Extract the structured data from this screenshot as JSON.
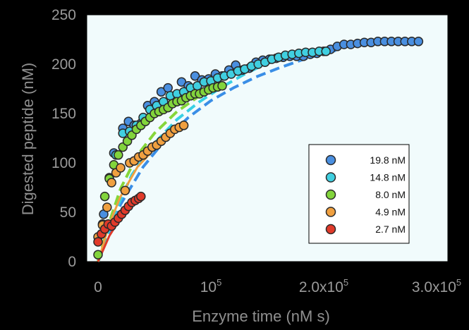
{
  "chart_data": {
    "type": "scatter",
    "xlabel": "Enzyme time (nM s)",
    "ylabel": "Digested peptide (nM)",
    "xlim": [
      -10000,
      310000
    ],
    "ylim": [
      0,
      250
    ],
    "x_ticks": [
      {
        "value": 0,
        "label": "0"
      },
      {
        "value": 100000,
        "label": "10",
        "sup": "5"
      },
      {
        "value": 200000,
        "label": "2.0x10",
        "sup": "5"
      },
      {
        "value": 300000,
        "label": "3.0x10",
        "sup": "5"
      }
    ],
    "y_ticks": [
      {
        "value": 0,
        "label": "0"
      },
      {
        "value": 50,
        "label": "50"
      },
      {
        "value": 100,
        "label": "100"
      },
      {
        "value": 150,
        "label": "150"
      },
      {
        "value": 200,
        "label": "200"
      },
      {
        "value": 250,
        "label": "250"
      }
    ],
    "legend_position": "bottom-right",
    "plot_background": "#f1fbfc",
    "series": [
      {
        "name": "19.8 nM",
        "color": "#4a8fe0",
        "points": [
          [
            5000,
            48
          ],
          [
            14000,
            110
          ],
          [
            22000,
            135
          ],
          [
            27000,
            142
          ],
          [
            32000,
            138
          ],
          [
            38000,
            140
          ],
          [
            44000,
            158
          ],
          [
            50000,
            162
          ],
          [
            56000,
            172
          ],
          [
            62000,
            176
          ],
          [
            68000,
            168
          ],
          [
            74000,
            182
          ],
          [
            80000,
            178
          ],
          [
            86000,
            188
          ],
          [
            92000,
            184
          ],
          [
            98000,
            185
          ],
          [
            104000,
            190
          ],
          [
            110000,
            188
          ],
          [
            116000,
            194
          ],
          [
            122000,
            199
          ],
          [
            128000,
            194
          ],
          [
            134000,
            196
          ],
          [
            140000,
            202
          ],
          [
            146000,
            204
          ],
          [
            152000,
            205
          ],
          [
            158000,
            206
          ],
          [
            164000,
            207
          ],
          [
            170000,
            208
          ],
          [
            176000,
            208
          ],
          [
            182000,
            208
          ],
          [
            188000,
            210
          ],
          [
            194000,
            211
          ],
          [
            200000,
            213
          ],
          [
            206000,
            215
          ],
          [
            212000,
            218
          ],
          [
            218000,
            220
          ],
          [
            224000,
            220
          ],
          [
            230000,
            221
          ],
          [
            236000,
            222
          ],
          [
            242000,
            222
          ],
          [
            248000,
            223
          ],
          [
            254000,
            223
          ],
          [
            260000,
            223
          ],
          [
            266000,
            223
          ],
          [
            272000,
            223
          ],
          [
            278000,
            223
          ],
          [
            284000,
            223
          ]
        ]
      },
      {
        "name": "14.8 nM",
        "color": "#40cfe0",
        "points": [
          [
            4000,
            38
          ],
          [
            10000,
            85
          ],
          [
            16000,
            108
          ],
          [
            22000,
            130
          ],
          [
            28000,
            132
          ],
          [
            34000,
            138
          ],
          [
            40000,
            146
          ],
          [
            46000,
            154
          ],
          [
            52000,
            158
          ],
          [
            58000,
            162
          ],
          [
            64000,
            168
          ],
          [
            70000,
            170
          ],
          [
            76000,
            172
          ],
          [
            82000,
            176
          ],
          [
            88000,
            178
          ],
          [
            94000,
            182
          ],
          [
            100000,
            183
          ],
          [
            106000,
            186
          ],
          [
            112000,
            188
          ],
          [
            118000,
            190
          ],
          [
            124000,
            193
          ],
          [
            130000,
            195
          ],
          [
            136000,
            198
          ],
          [
            142000,
            200
          ],
          [
            148000,
            202
          ],
          [
            154000,
            205
          ],
          [
            160000,
            207
          ],
          [
            166000,
            209
          ],
          [
            172000,
            210
          ],
          [
            178000,
            211
          ],
          [
            184000,
            212
          ],
          [
            190000,
            212
          ],
          [
            196000,
            213
          ],
          [
            202000,
            213
          ]
        ]
      },
      {
        "name": "8.0 nM",
        "color": "#82d43c",
        "points": [
          [
            0,
            7
          ],
          [
            6000,
            66
          ],
          [
            10000,
            84
          ],
          [
            14000,
            98
          ],
          [
            18000,
            108
          ],
          [
            22000,
            116
          ],
          [
            26000,
            122
          ],
          [
            30000,
            128
          ],
          [
            34000,
            134
          ],
          [
            38000,
            138
          ],
          [
            42000,
            142
          ],
          [
            46000,
            146
          ],
          [
            50000,
            150
          ],
          [
            54000,
            152
          ],
          [
            58000,
            154
          ],
          [
            62000,
            156
          ],
          [
            66000,
            160
          ],
          [
            70000,
            162
          ],
          [
            74000,
            163
          ],
          [
            78000,
            166
          ],
          [
            82000,
            168
          ],
          [
            86000,
            170
          ],
          [
            90000,
            170
          ],
          [
            94000,
            172
          ],
          [
            98000,
            174
          ],
          [
            102000,
            176
          ],
          [
            106000,
            177
          ],
          [
            110000,
            178
          ]
        ]
      },
      {
        "name": "4.9 nM",
        "color": "#f0a040",
        "points": [
          [
            0,
            25
          ],
          [
            4000,
            37
          ],
          [
            8000,
            55
          ],
          [
            12000,
            80
          ],
          [
            16000,
            90
          ],
          [
            20000,
            95
          ],
          [
            24000,
            72
          ],
          [
            28000,
            100
          ],
          [
            32000,
            102
          ],
          [
            36000,
            106
          ],
          [
            40000,
            108
          ],
          [
            44000,
            112
          ],
          [
            48000,
            116
          ],
          [
            52000,
            118
          ],
          [
            56000,
            122
          ],
          [
            60000,
            126
          ],
          [
            64000,
            130
          ],
          [
            68000,
            134
          ],
          [
            72000,
            136
          ],
          [
            76000,
            138
          ]
        ]
      },
      {
        "name": "2.7 nM",
        "color": "#e03a2a",
        "points": [
          [
            0,
            20
          ],
          [
            3000,
            28
          ],
          [
            6000,
            33
          ],
          [
            9000,
            38
          ],
          [
            12000,
            36
          ],
          [
            15000,
            40
          ],
          [
            18000,
            44
          ],
          [
            21000,
            48
          ],
          [
            24000,
            52
          ],
          [
            27000,
            56
          ],
          [
            30000,
            60
          ],
          [
            33000,
            62
          ],
          [
            36000,
            64
          ],
          [
            38000,
            66
          ]
        ]
      }
    ],
    "fit_lines": [
      {
        "color": "#3a8ee6",
        "dash": true,
        "points": [
          [
            0,
            0
          ],
          [
            20000,
            58
          ],
          [
            40000,
            96
          ],
          [
            60000,
            124
          ],
          [
            80000,
            146
          ],
          [
            100000,
            163
          ],
          [
            120000,
            176
          ],
          [
            140000,
            187
          ],
          [
            160000,
            196
          ],
          [
            180000,
            204
          ],
          [
            200000,
            211
          ],
          [
            215000,
            215
          ]
        ]
      },
      {
        "color": "#38d0e4",
        "dash": true,
        "points": [
          [
            0,
            0
          ],
          [
            15000,
            50
          ],
          [
            30000,
            88
          ],
          [
            50000,
            120
          ],
          [
            70000,
            144
          ],
          [
            90000,
            162
          ],
          [
            110000,
            177
          ],
          [
            130000,
            190
          ],
          [
            150000,
            201
          ],
          [
            170000,
            210
          ],
          [
            180000,
            214
          ]
        ]
      },
      {
        "color": "#86d63a",
        "dash": true,
        "points": [
          [
            0,
            0
          ],
          [
            10000,
            40
          ],
          [
            20000,
            74
          ],
          [
            35000,
            108
          ],
          [
            50000,
            130
          ],
          [
            70000,
            152
          ],
          [
            90000,
            168
          ],
          [
            112000,
            180
          ]
        ]
      },
      {
        "color": "#f0a040",
        "dash": false,
        "points": [
          [
            0,
            0
          ],
          [
            10000,
            38
          ],
          [
            20000,
            66
          ],
          [
            35000,
            96
          ],
          [
            55000,
            120
          ],
          [
            78000,
            140
          ]
        ]
      },
      {
        "color": "#e03a2a",
        "dash": false,
        "points": [
          [
            0,
            0
          ],
          [
            10000,
            26
          ],
          [
            20000,
            44
          ],
          [
            30000,
            58
          ],
          [
            40000,
            68
          ]
        ]
      }
    ]
  }
}
